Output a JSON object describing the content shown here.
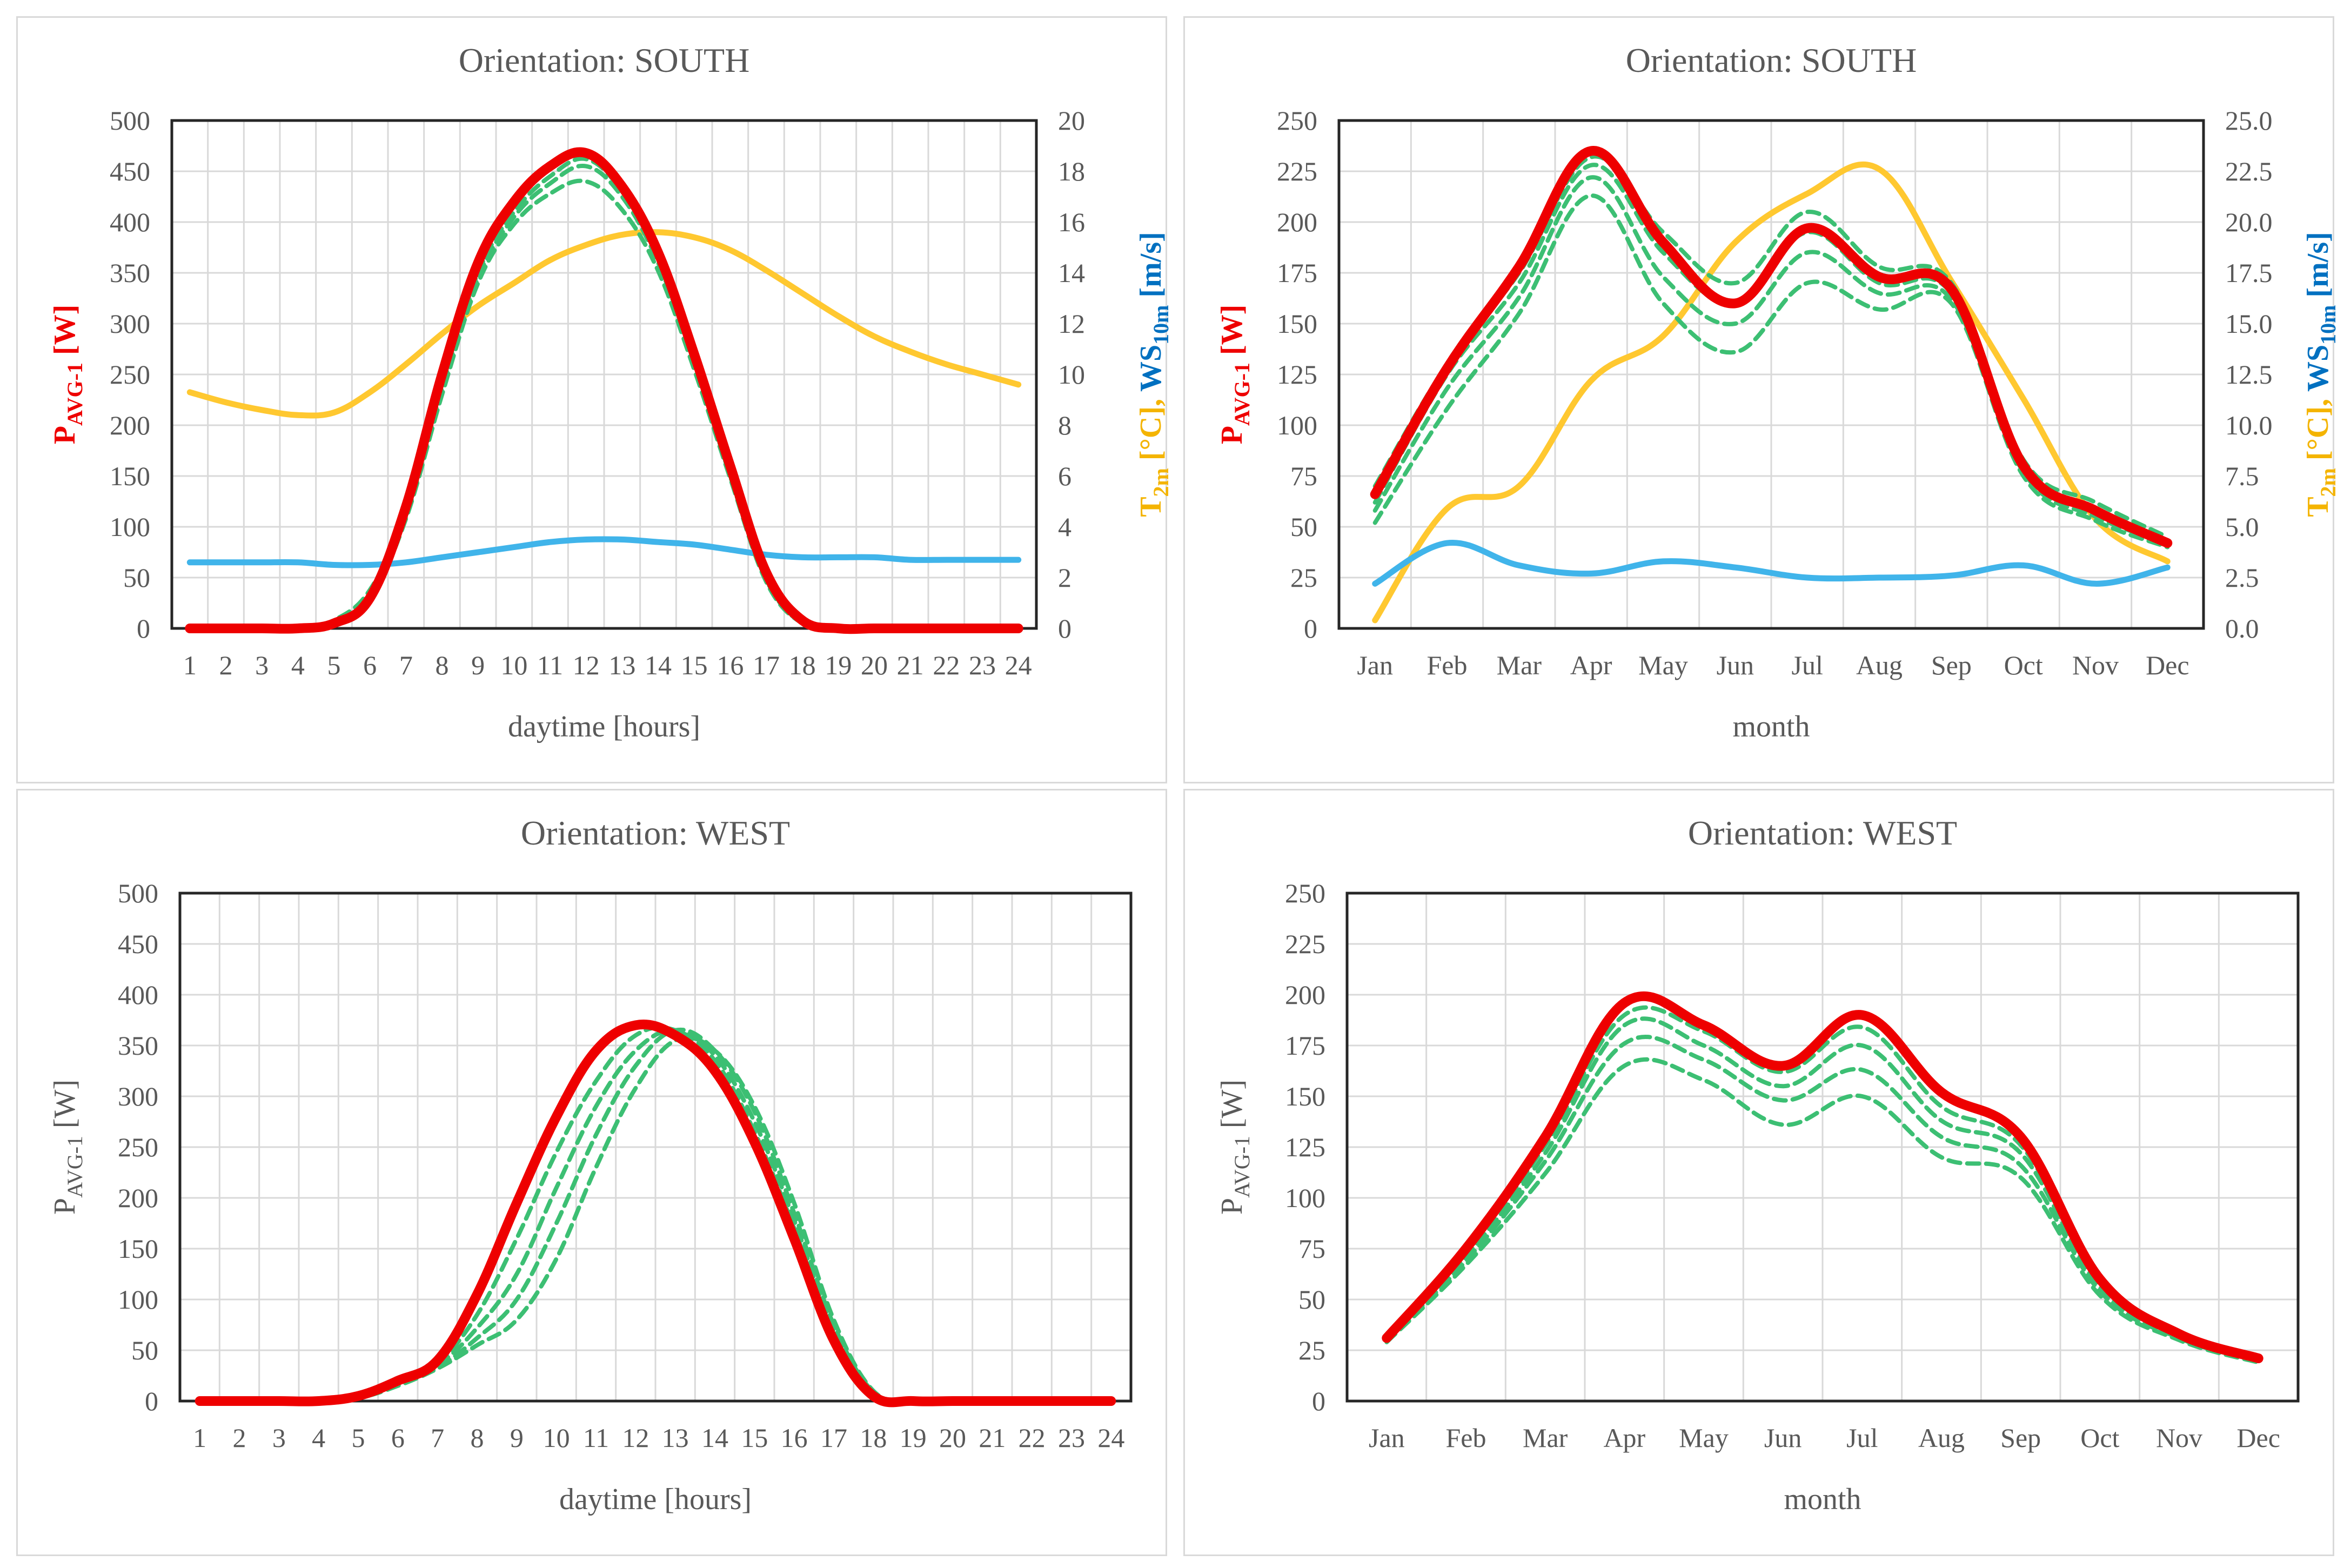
{
  "colors": {
    "actual": "#ee0000",
    "sim": "#3cbf73",
    "temp": "#ffc830",
    "wind": "#40b4ea",
    "axis_text": "#595959",
    "temp_label": "#f4b400",
    "wind_label": "#0070c0",
    "grid": "#d9d9d9"
  },
  "charts": [
    {
      "title": "Orientation: SOUTH",
      "xlabel": "daytime [hours]",
      "ylabel": {
        "base": "P",
        "sub": "AVG-1",
        "suffix": " [W]",
        "color": "#ee0000",
        "bold": true
      },
      "y2label": {
        "t_base": "T",
        "t_sub": "2m",
        "t_unit": " [°C], ",
        "ws_base": "WS",
        "ws_sub": "10m",
        "ws_unit": " [m/s]"
      },
      "categories": [
        "1",
        "2",
        "3",
        "4",
        "5",
        "6",
        "7",
        "8",
        "9",
        "10",
        "11",
        "12",
        "13",
        "14",
        "15",
        "16",
        "17",
        "18",
        "19",
        "20",
        "21",
        "22",
        "23",
        "24"
      ],
      "yticks": [
        "0",
        "50",
        "100",
        "150",
        "200",
        "250",
        "300",
        "350",
        "400",
        "450",
        "500"
      ],
      "y2ticks": [
        "0",
        "2",
        "4",
        "6",
        "8",
        "10",
        "12",
        "14",
        "16",
        "18",
        "20"
      ]
    },
    {
      "title": "Orientation: SOUTH",
      "xlabel": "month",
      "ylabel": {
        "base": "P",
        "sub": "AVG-1",
        "suffix": " [W]",
        "color": "#ee0000",
        "bold": true
      },
      "y2label": {
        "t_base": "T",
        "t_sub": "2m",
        "t_unit": " [°C], ",
        "ws_base": "WS",
        "ws_sub": "10m",
        "ws_unit": " [m/s]"
      },
      "categories": [
        "Jan",
        "Feb",
        "Mar",
        "Apr",
        "May",
        "Jun",
        "Jul",
        "Aug",
        "Sep",
        "Oct",
        "Nov",
        "Dec"
      ],
      "yticks": [
        "0",
        "25",
        "50",
        "75",
        "100",
        "125",
        "150",
        "175",
        "200",
        "225",
        "250"
      ],
      "y2ticks": [
        "0.0",
        "2.5",
        "5.0",
        "7.5",
        "10.0",
        "12.5",
        "15.0",
        "17.5",
        "20.0",
        "22.5",
        "25.0"
      ]
    },
    {
      "title": "Orientation: WEST",
      "xlabel": "daytime [hours]",
      "ylabel": {
        "base": "P",
        "sub": "AVG-1",
        "suffix": " [W]",
        "color": "#595959",
        "bold": false
      },
      "categories": [
        "1",
        "2",
        "3",
        "4",
        "5",
        "6",
        "7",
        "8",
        "9",
        "10",
        "11",
        "12",
        "13",
        "14",
        "15",
        "16",
        "17",
        "18",
        "19",
        "20",
        "21",
        "22",
        "23",
        "24"
      ],
      "yticks": [
        "0",
        "50",
        "100",
        "150",
        "200",
        "250",
        "300",
        "350",
        "400",
        "450",
        "500"
      ]
    },
    {
      "title": "Orientation: WEST",
      "xlabel": "month",
      "ylabel": {
        "base": "P",
        "sub": "AVG-1",
        "suffix": " [W]",
        "color": "#595959",
        "bold": false
      },
      "categories": [
        "Jan",
        "Feb",
        "Mar",
        "Apr",
        "May",
        "Jun",
        "Jul",
        "Aug",
        "Sep",
        "Oct",
        "Nov",
        "Dec"
      ],
      "yticks": [
        "0",
        "25",
        "50",
        "75",
        "100",
        "125",
        "150",
        "175",
        "200",
        "225",
        "250"
      ]
    }
  ],
  "chart_data": [
    {
      "type": "line",
      "title": "Orientation: SOUTH",
      "xlabel": "daytime [hours]",
      "ylabel": "PAVG-1 [W]",
      "y2label": "T2m [°C], WS10m [m/s]",
      "x": [
        1,
        2,
        3,
        4,
        5,
        6,
        7,
        8,
        9,
        10,
        11,
        12,
        13,
        14,
        15,
        16,
        17,
        18,
        19,
        20,
        21,
        22,
        23,
        24
      ],
      "ylim": [
        0,
        500
      ],
      "y2lim": [
        0,
        20
      ],
      "grid": true,
      "series": [
        {
          "axis": "y",
          "style": "actual",
          "values": [
            0,
            0,
            0,
            0,
            5,
            30,
            120,
            250,
            360,
            420,
            455,
            468,
            435,
            370,
            270,
            160,
            55,
            8,
            0,
            0,
            0,
            0,
            0,
            0
          ]
        },
        {
          "axis": "y",
          "style": "sim",
          "values": [
            0,
            0,
            0,
            0,
            8,
            38,
            115,
            240,
            350,
            410,
            445,
            462,
            430,
            365,
            265,
            155,
            50,
            6,
            0,
            0,
            0,
            0,
            0,
            0
          ]
        },
        {
          "axis": "y",
          "style": "sim",
          "values": [
            0,
            0,
            0,
            0,
            6,
            33,
            110,
            236,
            345,
            405,
            438,
            455,
            425,
            360,
            262,
            150,
            48,
            5,
            0,
            0,
            0,
            0,
            0,
            0
          ]
        },
        {
          "axis": "y",
          "style": "sim",
          "values": [
            0,
            0,
            0,
            0,
            5,
            30,
            108,
            230,
            340,
            398,
            428,
            440,
            412,
            352,
            255,
            148,
            46,
            5,
            0,
            0,
            0,
            0,
            0,
            0
          ]
        },
        {
          "axis": "y2",
          "style": "temp",
          "values": [
            9.3,
            8.9,
            8.6,
            8.4,
            8.5,
            9.3,
            10.4,
            11.6,
            12.7,
            13.6,
            14.5,
            15.1,
            15.5,
            15.6,
            15.4,
            14.9,
            14.1,
            13.2,
            12.3,
            11.5,
            10.9,
            10.4,
            10.0,
            9.6
          ]
        },
        {
          "axis": "y2",
          "style": "wind",
          "values": [
            2.6,
            2.6,
            2.6,
            2.6,
            2.5,
            2.5,
            2.6,
            2.8,
            3.0,
            3.2,
            3.4,
            3.5,
            3.5,
            3.4,
            3.3,
            3.1,
            2.9,
            2.8,
            2.8,
            2.8,
            2.7,
            2.7,
            2.7,
            2.7
          ]
        }
      ]
    },
    {
      "type": "line",
      "title": "Orientation: SOUTH",
      "xlabel": "month",
      "ylabel": "PAVG-1 [W]",
      "y2label": "T2m [°C], WS10m [m/s]",
      "categories": [
        "Jan",
        "Feb",
        "Mar",
        "Apr",
        "May",
        "Jun",
        "Jul",
        "Aug",
        "Sep",
        "Oct",
        "Nov",
        "Dec"
      ],
      "ylim": [
        0,
        250
      ],
      "y2lim": [
        0,
        25
      ],
      "grid": true,
      "series": [
        {
          "axis": "y",
          "style": "actual",
          "values": [
            66,
            128,
            178,
            235,
            190,
            160,
            197,
            173,
            167,
            80,
            58,
            42
          ]
        },
        {
          "axis": "y",
          "style": "sim",
          "values": [
            70,
            130,
            175,
            232,
            195,
            170,
            205,
            178,
            170,
            83,
            62,
            45
          ]
        },
        {
          "axis": "y",
          "style": "sim",
          "values": [
            62,
            125,
            170,
            228,
            185,
            160,
            195,
            170,
            165,
            80,
            58,
            43
          ]
        },
        {
          "axis": "y",
          "style": "sim",
          "values": [
            58,
            118,
            163,
            222,
            173,
            150,
            185,
            165,
            162,
            77,
            55,
            42
          ]
        },
        {
          "axis": "y",
          "style": "sim",
          "values": [
            52,
            108,
            155,
            213,
            160,
            136,
            170,
            157,
            160,
            75,
            53,
            40
          ]
        },
        {
          "axis": "y2",
          "style": "temp",
          "values": [
            0.4,
            5.9,
            7.0,
            12.2,
            14.4,
            19.0,
            21.4,
            22.6,
            17.1,
            11.3,
            5.4,
            3.3
          ]
        },
        {
          "axis": "y2",
          "style": "wind",
          "values": [
            2.2,
            4.2,
            3.1,
            2.7,
            3.3,
            3.0,
            2.5,
            2.5,
            2.6,
            3.1,
            2.2,
            3.0
          ]
        }
      ]
    },
    {
      "type": "line",
      "title": "Orientation: WEST",
      "xlabel": "daytime [hours]",
      "ylabel": "PAVG-1 [W]",
      "x": [
        1,
        2,
        3,
        4,
        5,
        6,
        7,
        8,
        9,
        10,
        11,
        12,
        13,
        14,
        15,
        16,
        17,
        18,
        19,
        20,
        21,
        22,
        23,
        24
      ],
      "ylim": [
        0,
        500
      ],
      "grid": true,
      "series": [
        {
          "style": "actual",
          "values": [
            0,
            0,
            0,
            0,
            5,
            20,
            40,
            105,
            195,
            280,
            345,
            370,
            360,
            325,
            255,
            160,
            60,
            5,
            0,
            0,
            0,
            0,
            0,
            0
          ]
        },
        {
          "style": "sim",
          "values": [
            0,
            0,
            0,
            0,
            5,
            18,
            37,
            85,
            160,
            245,
            315,
            360,
            365,
            335,
            265,
            170,
            65,
            7,
            0,
            0,
            0,
            0,
            0,
            0
          ]
        },
        {
          "style": "sim",
          "values": [
            0,
            0,
            0,
            0,
            4,
            17,
            35,
            72,
            125,
            210,
            290,
            345,
            365,
            340,
            275,
            178,
            70,
            8,
            0,
            0,
            0,
            0,
            0,
            0
          ]
        },
        {
          "style": "sim",
          "values": [
            0,
            0,
            0,
            0,
            4,
            16,
            33,
            62,
            100,
            175,
            262,
            330,
            365,
            345,
            285,
            185,
            75,
            9,
            0,
            0,
            0,
            0,
            0,
            0
          ]
        },
        {
          "style": "sim",
          "values": [
            0,
            0,
            0,
            0,
            3,
            15,
            32,
            55,
            80,
            140,
            230,
            308,
            355,
            345,
            290,
            195,
            80,
            10,
            0,
            0,
            0,
            0,
            0,
            0
          ]
        }
      ]
    },
    {
      "type": "line",
      "title": "Orientation: WEST",
      "xlabel": "month",
      "ylabel": "PAVG-1 [W]",
      "categories": [
        "Jan",
        "Feb",
        "Mar",
        "Apr",
        "May",
        "Jun",
        "Jul",
        "Aug",
        "Sep",
        "Oct",
        "Nov",
        "Dec"
      ],
      "ylim": [
        0,
        250
      ],
      "grid": true,
      "series": [
        {
          "style": "actual",
          "values": [
            31,
            75,
            130,
            196,
            185,
            165,
            190,
            152,
            130,
            60,
            33,
            21
          ]
        },
        {
          "style": "sim",
          "values": [
            30,
            73,
            126,
            190,
            182,
            162,
            184,
            145,
            126,
            58,
            32,
            20
          ]
        },
        {
          "style": "sim",
          "values": [
            30,
            71,
            122,
            185,
            175,
            155,
            175,
            138,
            122,
            56,
            31,
            20
          ]
        },
        {
          "style": "sim",
          "values": [
            30,
            69,
            118,
            176,
            168,
            148,
            163,
            130,
            116,
            54,
            31,
            20
          ]
        },
        {
          "style": "sim",
          "values": [
            29,
            67,
            112,
            165,
            158,
            136,
            150,
            120,
            110,
            52,
            30,
            19
          ]
        }
      ]
    }
  ]
}
